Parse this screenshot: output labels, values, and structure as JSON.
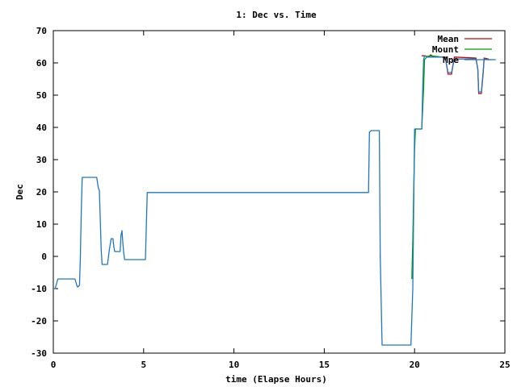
{
  "chart_data": {
    "type": "line",
    "title": "1: Dec vs. Time",
    "xlabel": "time (Elapse Hours)",
    "ylabel": "Dec",
    "xlim": [
      0,
      25
    ],
    "ylim": [
      -30,
      70
    ],
    "xticks": [
      0,
      5,
      10,
      15,
      20,
      25
    ],
    "yticks": [
      -30,
      -20,
      -10,
      0,
      10,
      20,
      30,
      40,
      50,
      60,
      70
    ],
    "grid": false,
    "legend_position": "top-right",
    "series": [
      {
        "name": "Mean",
        "color": "#cc0000",
        "points": [
          [
            20.4,
            62.2
          ],
          [
            20.6,
            62.2
          ],
          [
            20.75,
            61.8
          ],
          [
            20.9,
            62.5
          ],
          [
            21.05,
            61.8
          ],
          [
            21.5,
            61.8
          ],
          [
            21.7,
            61.8
          ],
          [
            21.8,
            58.5
          ],
          [
            21.85,
            56.5
          ],
          [
            22.05,
            56.5
          ],
          [
            22.1,
            58.5
          ],
          [
            22.2,
            61.8
          ],
          [
            23.4,
            61.5
          ],
          [
            23.5,
            58.0
          ],
          [
            23.55,
            50.5
          ],
          [
            23.7,
            50.5
          ],
          [
            23.8,
            57.0
          ],
          [
            23.85,
            61.5
          ],
          [
            24.1,
            61.2
          ]
        ]
      },
      {
        "name": "Mount",
        "color": "#00a000",
        "points": [
          [
            19.85,
            -7.0
          ],
          [
            19.9,
            5.0
          ],
          [
            19.95,
            20.0
          ],
          [
            20.0,
            33.0
          ],
          [
            20.05,
            39.5
          ],
          [
            20.4,
            39.5
          ],
          [
            20.5,
            52.0
          ],
          [
            20.55,
            61.0
          ],
          [
            20.7,
            62.0
          ],
          [
            20.9,
            62.2
          ],
          [
            21.5,
            61.8
          ]
        ]
      },
      {
        "name": "Mpe",
        "color": "#1f77c4",
        "points": [
          [
            0,
            -10
          ],
          [
            0.1,
            -10
          ],
          [
            0.15,
            -9
          ],
          [
            0.25,
            -7
          ],
          [
            1.2,
            -7
          ],
          [
            1.3,
            -9
          ],
          [
            1.35,
            -9.5
          ],
          [
            1.45,
            -9
          ],
          [
            1.5,
            0
          ],
          [
            1.55,
            15
          ],
          [
            1.6,
            24.5
          ],
          [
            2.4,
            24.5
          ],
          [
            2.5,
            21
          ],
          [
            2.55,
            20.5
          ],
          [
            2.65,
            2
          ],
          [
            2.7,
            -2.5
          ],
          [
            3.0,
            -2.5
          ],
          [
            3.1,
            2
          ],
          [
            3.2,
            5.5
          ],
          [
            3.3,
            5.5
          ],
          [
            3.35,
            3
          ],
          [
            3.4,
            1.5
          ],
          [
            3.7,
            1.5
          ],
          [
            3.75,
            6.5
          ],
          [
            3.8,
            8
          ],
          [
            3.85,
            4
          ],
          [
            3.9,
            1
          ],
          [
            3.95,
            -1
          ],
          [
            5.1,
            -1
          ],
          [
            5.15,
            10
          ],
          [
            5.2,
            19.8
          ],
          [
            17.45,
            19.8
          ],
          [
            17.5,
            38.5
          ],
          [
            17.6,
            39
          ],
          [
            18.05,
            39
          ],
          [
            18.1,
            0
          ],
          [
            18.2,
            -27.5
          ],
          [
            19.8,
            -27.5
          ],
          [
            19.9,
            -10
          ],
          [
            20.0,
            39.5
          ],
          [
            20.4,
            39.5
          ],
          [
            20.45,
            52
          ],
          [
            20.5,
            61
          ],
          [
            20.55,
            62.2
          ],
          [
            20.7,
            61.8
          ],
          [
            21.5,
            61.8
          ],
          [
            21.7,
            61.5
          ],
          [
            21.8,
            58.5
          ],
          [
            21.85,
            57.0
          ],
          [
            22.05,
            57.0
          ],
          [
            22.1,
            58.5
          ],
          [
            22.2,
            61.2
          ],
          [
            23.4,
            61.2
          ],
          [
            23.5,
            58.0
          ],
          [
            23.55,
            51.0
          ],
          [
            23.7,
            51.0
          ],
          [
            23.8,
            57.5
          ],
          [
            23.85,
            61.2
          ],
          [
            24.1,
            61.0
          ],
          [
            24.5,
            61.0
          ]
        ]
      }
    ]
  }
}
